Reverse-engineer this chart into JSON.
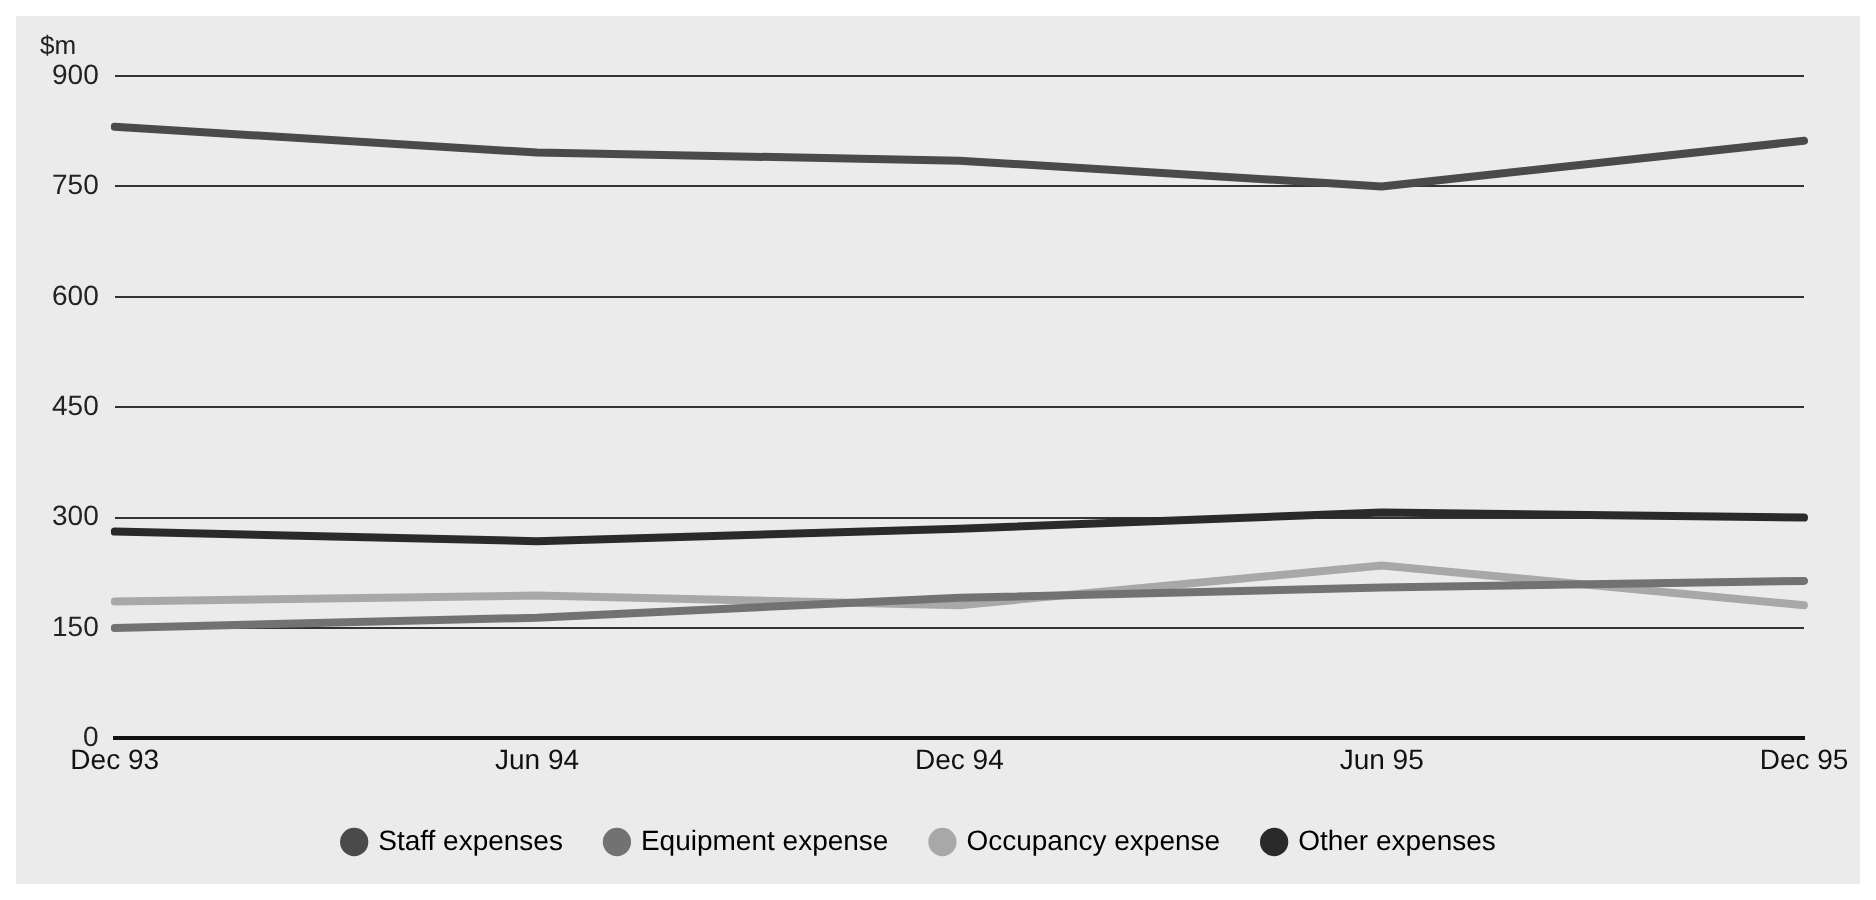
{
  "chart_data": {
    "type": "line",
    "ylabel": "$m",
    "categories": [
      "Dec 93",
      "Jun 94",
      "Dec 94",
      "Jun 95",
      "Dec 95"
    ],
    "series": [
      {
        "name": "Staff expenses",
        "color": "#4a4a4a",
        "values": [
          831,
          796,
          785,
          750,
          812
        ]
      },
      {
        "name": "Equipment expense",
        "color": "#727272",
        "values": [
          150,
          164,
          191,
          205,
          214
        ]
      },
      {
        "name": "Occupancy expense",
        "color": "#a8a8a8",
        "values": [
          186,
          194,
          181,
          235,
          181
        ]
      },
      {
        "name": "Other expenses",
        "color": "#2a2a2a",
        "values": [
          281,
          268,
          285,
          307,
          300
        ]
      }
    ],
    "ylim": [
      0,
      900
    ],
    "yticks": [
      0,
      150,
      300,
      450,
      600,
      750,
      900
    ],
    "grid": "y",
    "legend": "bottom",
    "marker": "none",
    "line_style": "solid"
  }
}
